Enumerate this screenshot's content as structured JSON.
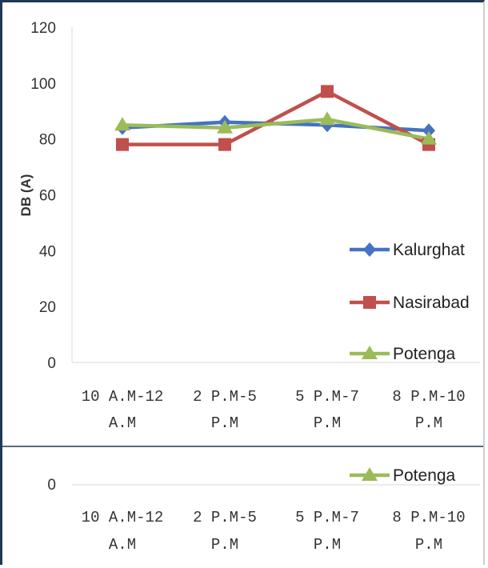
{
  "chart_data": {
    "type": "line",
    "title": "",
    "xlabel": "",
    "ylabel": "DB (A)",
    "ylim": [
      0,
      120
    ],
    "yticks": [
      0,
      20,
      40,
      60,
      80,
      100,
      120
    ],
    "grid": false,
    "legend_position": "right",
    "categories": [
      [
        "10 A.M-12",
        "A.M"
      ],
      [
        "2 P.M-5",
        "P.M"
      ],
      [
        "5 P.M-7",
        "P.M"
      ],
      [
        "8 P.M-10",
        "P.M"
      ]
    ],
    "series": [
      {
        "name": "Kalurghat",
        "values": [
          84,
          86,
          85,
          83
        ],
        "color": "#4472c4",
        "marker": "diamond"
      },
      {
        "name": "Nasirabad",
        "values": [
          78,
          78,
          97,
          78
        ],
        "color": "#c0504d",
        "marker": "square"
      },
      {
        "name": "Potenga",
        "values": [
          85,
          84,
          87,
          80
        ],
        "color": "#9bbb59",
        "marker": "triangle"
      }
    ]
  },
  "duplicate_panel": {
    "ytick": "0",
    "legend_name": "Potenga",
    "categories": [
      [
        "10 A.M-12",
        "A.M"
      ],
      [
        "2 P.M-5",
        "P.M"
      ],
      [
        "5 P.M-7",
        "P.M"
      ],
      [
        "8 P.M-10",
        "P.M"
      ]
    ]
  }
}
